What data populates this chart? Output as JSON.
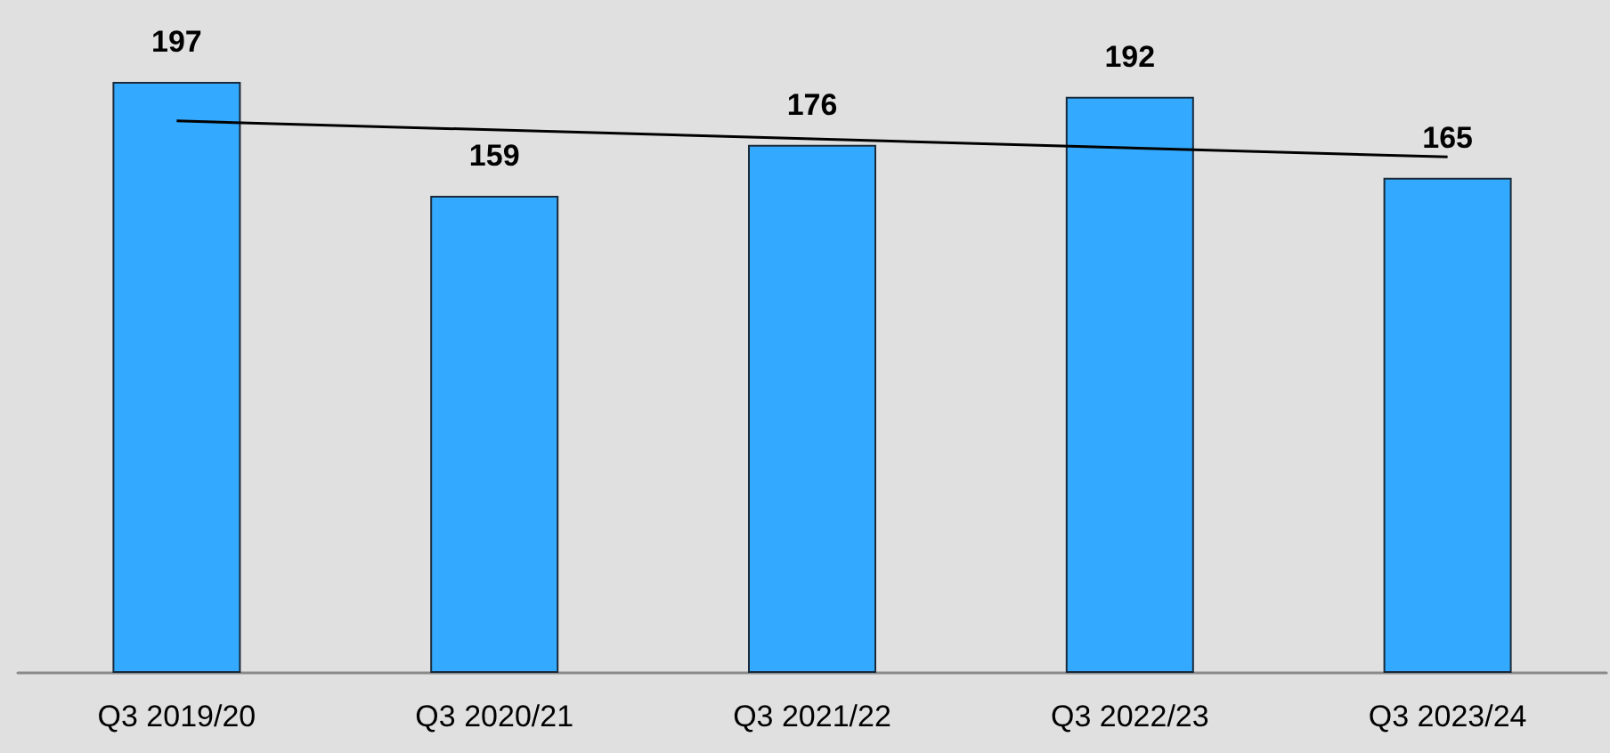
{
  "chart_data": {
    "type": "bar",
    "categories": [
      "Q3 2019/20",
      "Q3 2020/21",
      "Q3 2021/22",
      "Q3 2022/23",
      "Q3 2023/24"
    ],
    "series": [
      {
        "color": "#33aaff",
        "values": [
          197,
          159,
          176,
          192,
          165
        ],
        "value_labels": [
          "197",
          "159",
          "176",
          "192",
          "165"
        ]
      },
      {
        "type": "line",
        "color": "#000000",
        "x": [
          "Q3 2019/20",
          "Q3 2023/24"
        ],
        "values": [
          184,
          172
        ]
      }
    ],
    "marker": "none",
    "line_style": "solid"
  }
}
